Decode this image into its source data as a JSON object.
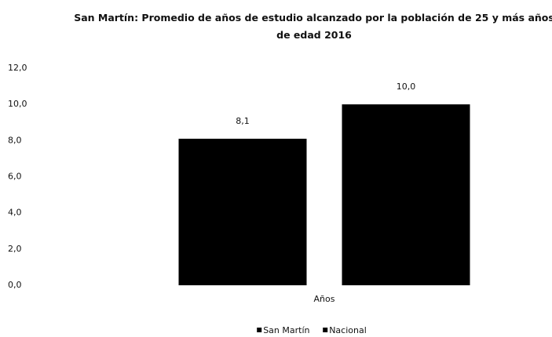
{
  "chart_data": {
    "type": "bar",
    "title": "San Martín: Promedio de años de estudio alcanzado por la población de 25 y más años de edad 2016",
    "categories": [
      "Años"
    ],
    "series": [
      {
        "name": "San Martín",
        "color": "#000000",
        "values": [
          8.1
        ],
        "value_labels": [
          "8,1"
        ]
      },
      {
        "name": "Nacional",
        "color": "#000000",
        "values": [
          10.0
        ],
        "value_labels": [
          "10,0"
        ]
      }
    ],
    "ylim": [
      0,
      12
    ],
    "yticks": [
      {
        "value": 0,
        "label": "0,0"
      },
      {
        "value": 2,
        "label": "2,0"
      },
      {
        "value": 4,
        "label": "4,0"
      },
      {
        "value": 6,
        "label": "6,0"
      },
      {
        "value": 8,
        "label": "8,0"
      },
      {
        "value": 10,
        "label": "10,0"
      },
      {
        "value": 12,
        "label": "12,0"
      }
    ],
    "grid": false,
    "legend": "bottom"
  }
}
